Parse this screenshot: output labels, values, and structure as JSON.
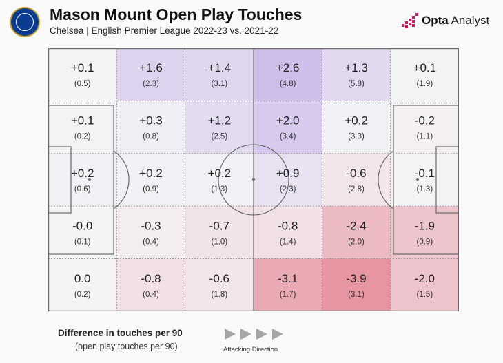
{
  "header": {
    "title": "Mason Mount Open Play Touches",
    "subtitle": "Chelsea | English Premier League 2022-23 vs. 2021-22",
    "brand_strong": "Opta",
    "brand_light": " Analyst"
  },
  "legend": {
    "title": "Difference in touches per 90",
    "subtitle": "(open play touches per 90)",
    "direction_label": "Attacking Direction"
  },
  "colors": {
    "positive": "#b79ae0",
    "negative": "#e58c98",
    "neutral": "#f4f4f6",
    "brand_accent": "#d4145a",
    "chelsea_blue": "#0a3d91"
  },
  "chart_data": {
    "type": "heatmap",
    "title": "Mason Mount Open Play Touches",
    "subtitle": "Chelsea | English Premier League 2022-23 vs. 2021-22",
    "value_label": "Difference in touches per 90",
    "secondary_label": "open play touches per 90",
    "rows": 5,
    "cols": 6,
    "attacking_direction": "right",
    "differences": [
      [
        "+0.1",
        "+1.6",
        "+1.4",
        "+2.6",
        "+1.3",
        "+0.1"
      ],
      [
        "+0.1",
        "+0.3",
        "+1.2",
        "+2.0",
        "+0.2",
        "-0.2"
      ],
      [
        "+0.2",
        "+0.2",
        "+0.2",
        "+0.9",
        "-0.6",
        "-0.1"
      ],
      [
        "-0.0",
        "-0.3",
        "-0.7",
        "-0.8",
        "-2.4",
        "-1.9"
      ],
      [
        "0.0",
        "-0.8",
        "-0.6",
        "-3.1",
        "-3.9",
        "-2.0"
      ]
    ],
    "touches_per_90": [
      [
        "(0.5)",
        "(2.3)",
        "(3.1)",
        "(4.8)",
        "(5.8)",
        "(1.9)"
      ],
      [
        "(0.2)",
        "(0.8)",
        "(2.5)",
        "(3.4)",
        "(3.3)",
        "(1.1)"
      ],
      [
        "(0.6)",
        "(0.9)",
        "(1.3)",
        "(2.3)",
        "(2.8)",
        "(1.3)"
      ],
      [
        "(0.1)",
        "(0.4)",
        "(1.0)",
        "(1.4)",
        "(2.0)",
        "(0.9)"
      ],
      [
        "(0.2)",
        "(0.4)",
        "(1.8)",
        "(1.7)",
        "(3.1)",
        "(1.5)"
      ]
    ]
  }
}
